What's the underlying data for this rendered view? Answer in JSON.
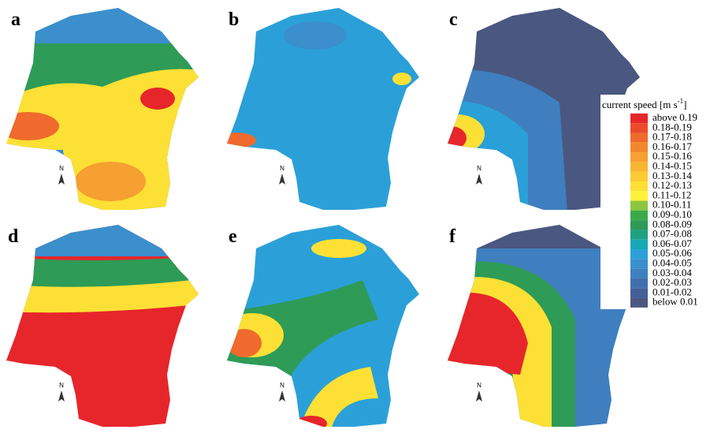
{
  "panels": [
    {
      "label": "a"
    },
    {
      "label": "b"
    },
    {
      "label": "c"
    },
    {
      "label": "d"
    },
    {
      "label": "e"
    },
    {
      "label": "f"
    }
  ],
  "north_label": "N",
  "legend": {
    "title": "current speed [m s",
    "title_superscript": "-1",
    "title_end": "]",
    "entries": [
      {
        "label": "above 0.19",
        "color": "#e6262b"
      },
      {
        "label": "0.18-0.19",
        "color": "#ec4a2b"
      },
      {
        "label": "0.17-0.18",
        "color": "#ef6a2c"
      },
      {
        "label": "0.16-0.17",
        "color": "#f2882e"
      },
      {
        "label": "0.15-0.16",
        "color": "#f5a030"
      },
      {
        "label": "0.14-0.15",
        "color": "#f8b632"
      },
      {
        "label": "0.13-0.14",
        "color": "#fbcb33"
      },
      {
        "label": "0.12-0.13",
        "color": "#fde035"
      },
      {
        "label": "0.11-0.12",
        "color": "#fff13a"
      },
      {
        "label": "0.10-0.11",
        "color": "#8cc63f"
      },
      {
        "label": "0.09-0.10",
        "color": "#3aaa49"
      },
      {
        "label": "0.08-0.09",
        "color": "#2e9b57"
      },
      {
        "label": "0.07-0.08",
        "color": "#1fa084"
      },
      {
        "label": "0.06-0.07",
        "color": "#19a8b8"
      },
      {
        "label": "0.05-0.06",
        "color": "#2ba0d8"
      },
      {
        "label": "0.04-0.05",
        "color": "#3a8fcc"
      },
      {
        "label": "0.03-0.04",
        "color": "#3f7fbf"
      },
      {
        "label": "0.02-0.03",
        "color": "#416fae"
      },
      {
        "label": "0.01-0.02",
        "color": "#455f98"
      },
      {
        "label": "below 0.01",
        "color": "#4a5780"
      }
    ]
  }
}
